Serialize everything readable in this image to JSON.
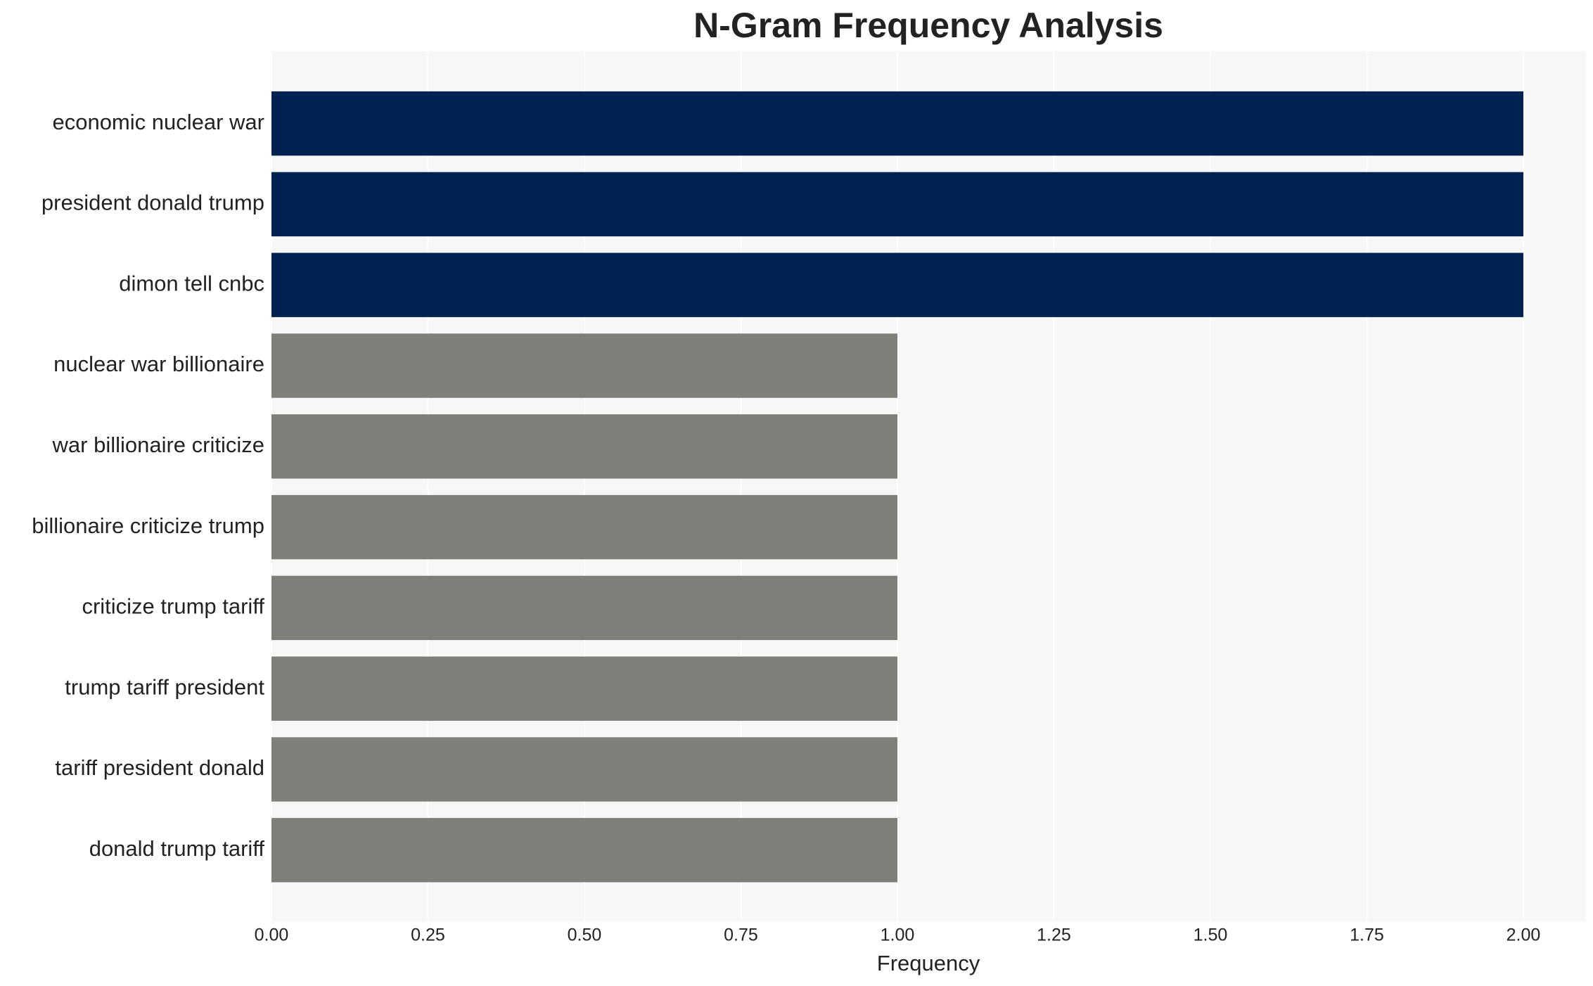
{
  "chart_data": {
    "type": "barh",
    "title": "N-Gram Frequency Analysis",
    "x_label": "Frequency",
    "categories": [
      "economic nuclear war",
      "president donald trump",
      "dimon tell cnbc",
      "nuclear war billionaire",
      "war billionaire criticize",
      "billionaire criticize trump",
      "criticize trump tariff",
      "trump tariff president",
      "tariff president donald",
      "donald trump tariff"
    ],
    "values": [
      2,
      2,
      2,
      1,
      1,
      1,
      1,
      1,
      1,
      1
    ],
    "colors": [
      "#002251",
      "#002251",
      "#002251",
      "#7f7e79",
      "#7f7e79",
      "#7f7e79",
      "#7f7e79",
      "#7f7e79",
      "#7f7e79",
      "#7f7e79"
    ],
    "xlim": [
      0,
      2.1
    ],
    "xticks": [
      {
        "value": 0,
        "label": "0.00"
      },
      0.25,
      {
        "value": 0.5,
        "label": "0.50"
      },
      0.75,
      {
        "value": 1,
        "label": "1.00"
      },
      1.25,
      {
        "value": 1.5,
        "label": "1.50"
      },
      1.75,
      {
        "value": 2,
        "label": "2.00"
      }
    ],
    "grid": true
  }
}
